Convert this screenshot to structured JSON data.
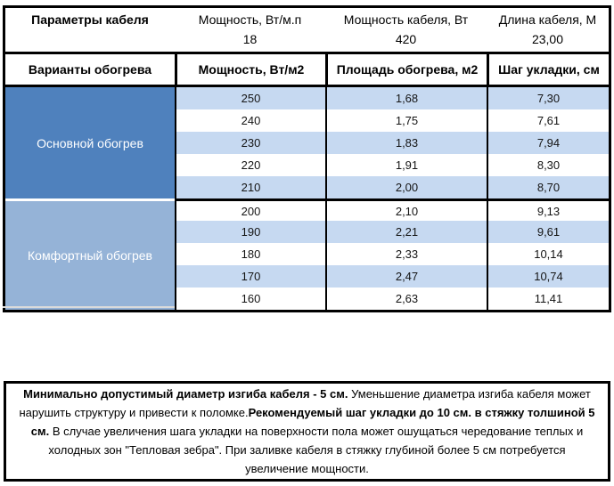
{
  "colors": {
    "section_main_blue": "#4F81BD",
    "section_comfort_blue": "#95B3D7",
    "row_stripe_blue": "#C6D9F1",
    "border_black": "#000000"
  },
  "params": {
    "title": "Параметры кабеля",
    "cols": [
      {
        "label": "Мощность, Вт/м.п",
        "value": "18"
      },
      {
        "label": "Мощность кабеля, Вт",
        "value": "420"
      },
      {
        "label": "Длина кабеля, М",
        "value": "23,00"
      }
    ]
  },
  "variants_header": {
    "col1": "Варианты обогрева",
    "col2": "Мощность, Вт/м2",
    "col3": "Площадь обогрева, м2",
    "col4": "Шаг укладки, см"
  },
  "sections": [
    {
      "label": "Основной обогрев",
      "rows": [
        [
          "250",
          "1,68",
          "7,30"
        ],
        [
          "240",
          "1,75",
          "7,61"
        ],
        [
          "230",
          "1,83",
          "7,94"
        ],
        [
          "220",
          "1,91",
          "8,30"
        ],
        [
          "210",
          "2,00",
          "8,70"
        ]
      ]
    },
    {
      "label": "Комфортный обогрев",
      "rows": [
        [
          "200",
          "2,10",
          "9,13"
        ],
        [
          "190",
          "2,21",
          "9,61"
        ],
        [
          "180",
          "2,33",
          "10,14"
        ],
        [
          "170",
          "2,47",
          "10,74"
        ],
        [
          "160",
          "2,63",
          "11,41"
        ]
      ]
    }
  ],
  "note_lines": [
    [
      {
        "t": "Минимально допустимый диаметр изгиба кабеля - 5 см.",
        "b": 1
      },
      {
        "t": " Уменьшение диаметра изгиба кабеля может",
        "b": 0
      }
    ],
    [
      {
        "t": "нарушить структуру и привести к поломке.",
        "b": 0
      },
      {
        "t": "Рекомендуемый шаг укладки до 10 см. в стяжку толшиной 5",
        "b": 1
      }
    ],
    [
      {
        "t": "см.",
        "b": 1
      },
      {
        "t": " В  случае увеличения шага укладки на поверхности пола может ошущаться чередование теплых и",
        "b": 0
      }
    ],
    [
      {
        "t": "холодных зон \"Тепловая зебра\". При заливке кабеля в стяжку глубиной более 5 см потребуется",
        "b": 0
      }
    ],
    [
      {
        "t": "увеличение мощности.",
        "b": 0
      }
    ]
  ]
}
